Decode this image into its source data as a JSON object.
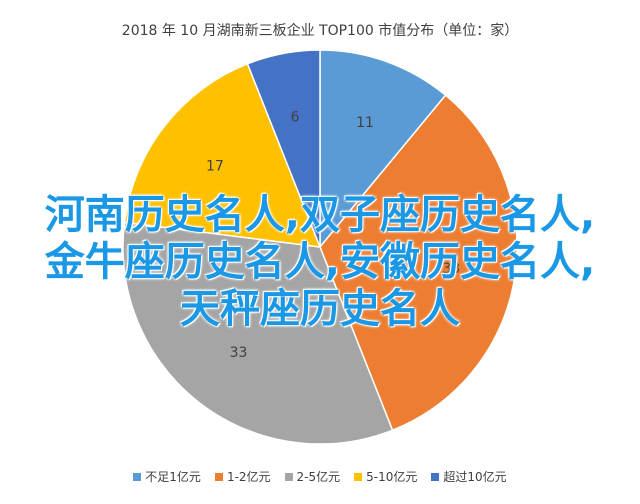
{
  "chart_data": {
    "type": "pie",
    "title": "2018 年 10 月湖南新三板企业 TOP100 市值分布（单位：家）",
    "categories": [
      "不足1亿元",
      "1-2亿元",
      "2-5亿元",
      "5-10亿元",
      "超过10亿元"
    ],
    "values": [
      11,
      33,
      33,
      17,
      6
    ],
    "colors": [
      "#5b9bd5",
      "#ed7d31",
      "#a5a5a5",
      "#ffc000",
      "#4472c4"
    ],
    "legend": "bottom"
  },
  "overlay": {
    "line1": "河南历史名人,双子座历史名人,",
    "line2": "金牛座历史名人,安徽历史名人,",
    "line3": "天秤座历史名人"
  }
}
